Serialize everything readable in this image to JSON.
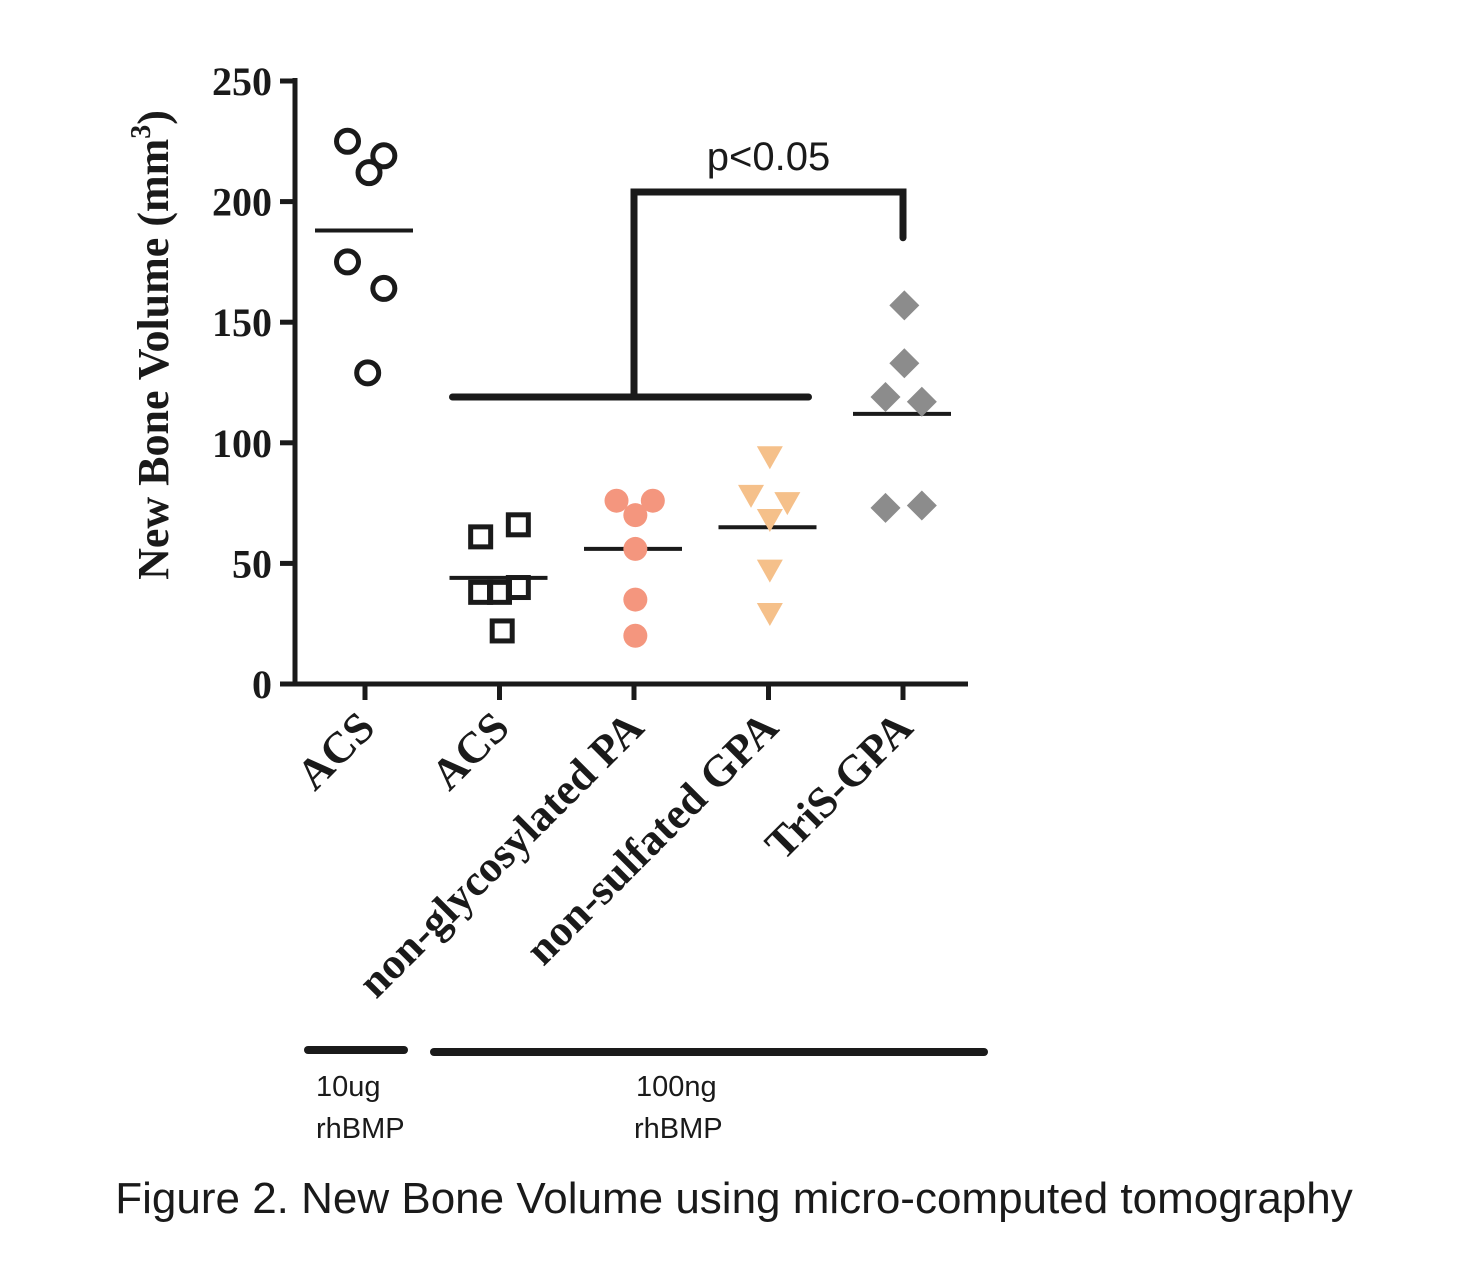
{
  "chart_data": {
    "type": "scatter",
    "ylabel": "New Bone Volume (mm",
    "ylabel_sup": "3",
    "ylabel_close": ")",
    "ylim": [
      0,
      250
    ],
    "yticks": [
      0,
      50,
      100,
      150,
      200,
      250
    ],
    "yticks_labels": [
      "0",
      "50",
      "100",
      "150",
      "200",
      "250"
    ],
    "categories": [
      "ACS",
      "ACS",
      "non-glycosylated PA",
      "non-sulfated GPA",
      "TriS-GPA"
    ],
    "grid": false,
    "series": [
      {
        "name": "ACS",
        "marker": "open-circle",
        "color": "#1a1a1a",
        "points": [
          [
            -0.13,
            225
          ],
          [
            0.14,
            219
          ],
          [
            0.03,
            212
          ],
          [
            -0.13,
            175
          ],
          [
            0.14,
            164
          ],
          [
            0.02,
            129
          ]
        ],
        "mean": 188
      },
      {
        "name": "ACS",
        "marker": "open-square",
        "color": "#1a1a1a",
        "points": [
          [
            -0.14,
            61
          ],
          [
            0.14,
            66
          ],
          [
            -0.14,
            38
          ],
          [
            0.0,
            38
          ],
          [
            0.14,
            40
          ],
          [
            0.02,
            22
          ]
        ],
        "mean": 44
      },
      {
        "name": "non-glycosylated PA",
        "marker": "filled-circle",
        "color": "#f4967e",
        "points": [
          [
            -0.13,
            76
          ],
          [
            0.14,
            76
          ],
          [
            0.01,
            70
          ],
          [
            0.01,
            56
          ],
          [
            0.01,
            35
          ],
          [
            0.01,
            20
          ]
        ],
        "mean": 56
      },
      {
        "name": "non-sulfated GPA",
        "marker": "filled-triangle-down",
        "color": "#f5c08a",
        "points": [
          [
            0.01,
            94
          ],
          [
            -0.13,
            78
          ],
          [
            0.14,
            75
          ],
          [
            0.01,
            68
          ],
          [
            0.01,
            47
          ],
          [
            0.01,
            29
          ]
        ],
        "mean": 65
      },
      {
        "name": "TriS-GPA",
        "marker": "filled-diamond",
        "color": "#8c8c8c",
        "points": [
          [
            0.01,
            157
          ],
          [
            0.01,
            133
          ],
          [
            -0.13,
            119
          ],
          [
            0.14,
            117
          ],
          [
            -0.13,
            73
          ],
          [
            0.14,
            74
          ]
        ],
        "mean": 112
      }
    ],
    "significance": {
      "label": "p<0.05",
      "from_categories": [
        1,
        3
      ],
      "to_category": 4,
      "group_bar_value": 119,
      "bracket_top_value": 204,
      "bracket_end_value": 185
    }
  },
  "dose_groups": [
    {
      "line1": "10ug",
      "line2": "rhBMP"
    },
    {
      "line1": "100ng",
      "line2": "rhBMP"
    }
  ],
  "caption": "Figure 2. New Bone Volume using micro-computed tomography"
}
